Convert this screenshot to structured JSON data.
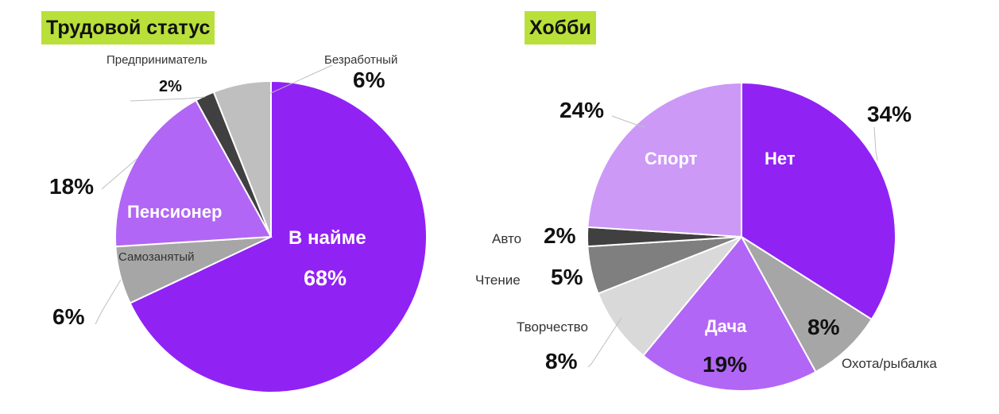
{
  "chart_data": [
    {
      "type": "pie",
      "title": "Трудовой статус",
      "slices": [
        {
          "label": "В найме",
          "value": 68,
          "pct_text": "68%",
          "color": "#9122f4"
        },
        {
          "label": "Самозанятый",
          "value": 6,
          "pct_text": "6%",
          "color": "#a6a6a6"
        },
        {
          "label": "Пенсионер",
          "value": 18,
          "pct_text": "18%",
          "color": "#b266f5"
        },
        {
          "label": "Предприниматель",
          "value": 2,
          "pct_text": "2%",
          "color": "#404040"
        },
        {
          "label": "Безработный",
          "value": 6,
          "pct_text": "6%",
          "color": "#bfbfbf"
        }
      ]
    },
    {
      "type": "pie",
      "title": "Хобби",
      "slices": [
        {
          "label": "Нет",
          "value": 34,
          "pct_text": "34%",
          "color": "#9122f4"
        },
        {
          "label": "Охота/рыбалка",
          "value": 8,
          "pct_text": "8%",
          "color": "#a6a6a6"
        },
        {
          "label": "Дача",
          "value": 19,
          "pct_text": "19%",
          "color": "#b266f5"
        },
        {
          "label": "Творчество",
          "value": 8,
          "pct_text": "8%",
          "color": "#d9d9d9"
        },
        {
          "label": "Чтение",
          "value": 5,
          "pct_text": "5%",
          "color": "#7f7f7f"
        },
        {
          "label": "Авто",
          "value": 2,
          "pct_text": "2%",
          "color": "#404040"
        },
        {
          "label": "Спорт",
          "value": 24,
          "pct_text": "24%",
          "color": "#cc99f7"
        }
      ]
    }
  ]
}
